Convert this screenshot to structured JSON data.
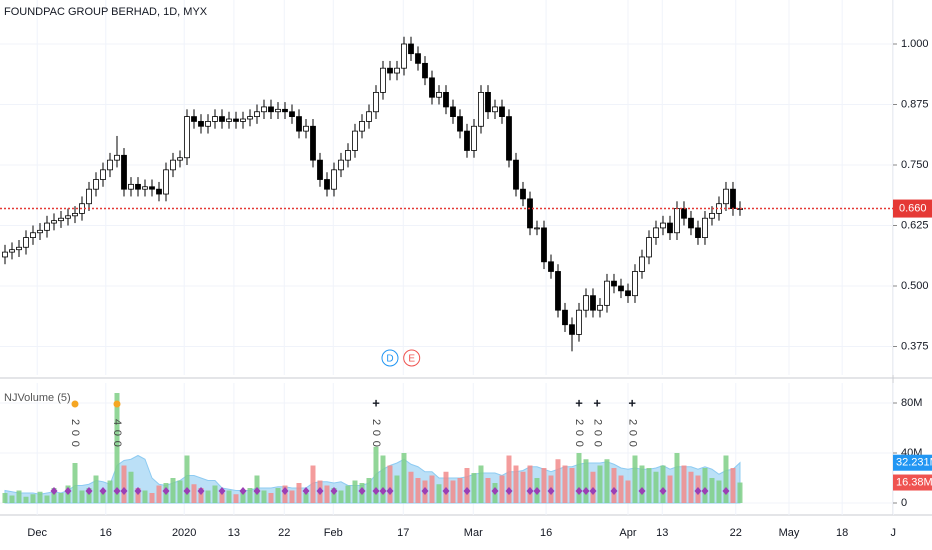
{
  "chart_data": {
    "type": "candlestick",
    "title": "FOUNDPAC GROUP BERHAD, 1D, MYX",
    "open": [
      0.56,
      0.57,
      0.575,
      0.58,
      0.6,
      0.61,
      0.615,
      0.63,
      0.635,
      0.64,
      0.645,
      0.65,
      0.67,
      0.7,
      0.72,
      0.74,
      0.76,
      0.77,
      0.7,
      0.71,
      0.7,
      0.705,
      0.7,
      0.69,
      0.74,
      0.76,
      0.765,
      0.85,
      0.84,
      0.83,
      0.84,
      0.85,
      0.84,
      0.845,
      0.84,
      0.845,
      0.85,
      0.86,
      0.87,
      0.86,
      0.865,
      0.86,
      0.85,
      0.82,
      0.83,
      0.76,
      0.72,
      0.7,
      0.74,
      0.76,
      0.78,
      0.82,
      0.84,
      0.86,
      0.9,
      0.95,
      0.94,
      0.95,
      1.0,
      0.98,
      0.96,
      0.93,
      0.89,
      0.9,
      0.87,
      0.85,
      0.82,
      0.78,
      0.83,
      0.9,
      0.86,
      0.87,
      0.85,
      0.76,
      0.7,
      0.68,
      0.62,
      0.62,
      0.55,
      0.53,
      0.45,
      0.42,
      0.4,
      0.45,
      0.48,
      0.45,
      0.46,
      0.51,
      0.5,
      0.49,
      0.48,
      0.53,
      0.56,
      0.6,
      0.62,
      0.63,
      0.61,
      0.66,
      0.64,
      0.62,
      0.6,
      0.64,
      0.65,
      0.67,
      0.7,
      0.66
    ],
    "high": [
      0.585,
      0.59,
      0.595,
      0.615,
      0.625,
      0.63,
      0.645,
      0.65,
      0.655,
      0.66,
      0.665,
      0.685,
      0.715,
      0.735,
      0.755,
      0.775,
      0.81,
      0.785,
      0.725,
      0.725,
      0.72,
      0.72,
      0.715,
      0.755,
      0.775,
      0.78,
      0.865,
      0.865,
      0.855,
      0.855,
      0.865,
      0.865,
      0.86,
      0.86,
      0.86,
      0.865,
      0.875,
      0.885,
      0.885,
      0.88,
      0.88,
      0.875,
      0.865,
      0.845,
      0.845,
      0.775,
      0.735,
      0.755,
      0.775,
      0.795,
      0.835,
      0.855,
      0.875,
      0.915,
      0.965,
      0.965,
      0.965,
      1.015,
      1.015,
      0.995,
      0.975,
      0.945,
      0.915,
      0.915,
      0.885,
      0.865,
      0.835,
      0.845,
      0.915,
      0.915,
      0.885,
      0.885,
      0.865,
      0.775,
      0.715,
      0.695,
      0.635,
      0.635,
      0.565,
      0.545,
      0.465,
      0.435,
      0.465,
      0.495,
      0.495,
      0.475,
      0.525,
      0.525,
      0.515,
      0.505,
      0.545,
      0.575,
      0.615,
      0.635,
      0.645,
      0.645,
      0.675,
      0.675,
      0.655,
      0.635,
      0.655,
      0.665,
      0.685,
      0.715,
      0.715,
      0.675
    ],
    "low": [
      0.545,
      0.555,
      0.56,
      0.565,
      0.585,
      0.595,
      0.6,
      0.615,
      0.62,
      0.625,
      0.63,
      0.635,
      0.655,
      0.685,
      0.705,
      0.725,
      0.745,
      0.685,
      0.685,
      0.685,
      0.685,
      0.685,
      0.675,
      0.675,
      0.725,
      0.745,
      0.75,
      0.825,
      0.815,
      0.815,
      0.825,
      0.825,
      0.825,
      0.825,
      0.825,
      0.83,
      0.835,
      0.845,
      0.845,
      0.845,
      0.845,
      0.835,
      0.805,
      0.805,
      0.745,
      0.705,
      0.685,
      0.685,
      0.725,
      0.745,
      0.765,
      0.805,
      0.825,
      0.845,
      0.885,
      0.925,
      0.925,
      0.935,
      0.965,
      0.945,
      0.915,
      0.875,
      0.875,
      0.855,
      0.835,
      0.805,
      0.765,
      0.765,
      0.815,
      0.845,
      0.845,
      0.835,
      0.745,
      0.685,
      0.665,
      0.605,
      0.605,
      0.535,
      0.515,
      0.435,
      0.405,
      0.365,
      0.385,
      0.435,
      0.435,
      0.435,
      0.445,
      0.485,
      0.475,
      0.465,
      0.465,
      0.515,
      0.545,
      0.585,
      0.605,
      0.595,
      0.595,
      0.625,
      0.605,
      0.585,
      0.585,
      0.625,
      0.635,
      0.655,
      0.645,
      0.645
    ],
    "close": [
      0.57,
      0.575,
      0.58,
      0.6,
      0.61,
      0.615,
      0.63,
      0.635,
      0.64,
      0.645,
      0.65,
      0.67,
      0.7,
      0.72,
      0.74,
      0.76,
      0.77,
      0.7,
      0.71,
      0.7,
      0.705,
      0.7,
      0.69,
      0.74,
      0.76,
      0.765,
      0.85,
      0.84,
      0.83,
      0.84,
      0.85,
      0.84,
      0.845,
      0.84,
      0.845,
      0.85,
      0.86,
      0.87,
      0.86,
      0.865,
      0.86,
      0.85,
      0.82,
      0.83,
      0.76,
      0.72,
      0.7,
      0.74,
      0.76,
      0.78,
      0.82,
      0.84,
      0.86,
      0.9,
      0.95,
      0.94,
      0.95,
      1.0,
      0.98,
      0.96,
      0.93,
      0.89,
      0.9,
      0.87,
      0.85,
      0.82,
      0.78,
      0.83,
      0.9,
      0.86,
      0.87,
      0.85,
      0.76,
      0.7,
      0.68,
      0.62,
      0.62,
      0.55,
      0.53,
      0.45,
      0.42,
      0.4,
      0.45,
      0.48,
      0.45,
      0.46,
      0.51,
      0.5,
      0.49,
      0.48,
      0.53,
      0.56,
      0.6,
      0.62,
      0.63,
      0.61,
      0.66,
      0.64,
      0.62,
      0.6,
      0.64,
      0.65,
      0.67,
      0.7,
      0.66,
      0.66
    ],
    "up_color": "#ffffff",
    "down_color": "#000000",
    "xlim": [
      -0.714,
      126.86
    ],
    "xticks": [
      {
        "value": 4.6,
        "label": "Dec"
      },
      {
        "value": 14.4,
        "label": "16"
      },
      {
        "value": 25.6,
        "label": "2020"
      },
      {
        "value": 32.7,
        "label": "13"
      },
      {
        "value": 39.9,
        "label": "22"
      },
      {
        "value": 46.9,
        "label": "Feb"
      },
      {
        "value": 56.9,
        "label": "17"
      },
      {
        "value": 66.9,
        "label": "Mar"
      },
      {
        "value": 77.3,
        "label": "16"
      },
      {
        "value": 89,
        "label": "Apr"
      },
      {
        "value": 93.9,
        "label": "13"
      },
      {
        "value": 104.4,
        "label": "22"
      },
      {
        "value": 112,
        "label": "May"
      },
      {
        "value": 119.6,
        "label": "18"
      },
      {
        "value": 126.9,
        "label": "J"
      }
    ],
    "ylim": [
      0.3161,
      1.0909
    ],
    "yticks": [
      {
        "value": 0.375,
        "label": "0.375"
      },
      {
        "value": 0.5,
        "label": "0.500"
      },
      {
        "value": 0.625,
        "label": "0.625"
      },
      {
        "value": 0.75,
        "label": "0.750"
      },
      {
        "value": 0.875,
        "label": "0.875"
      },
      {
        "value": 1,
        "label": "1.000"
      }
    ],
    "grid": true,
    "last_price": {
      "value": 0.66,
      "label": "0.660",
      "color": "#e53935"
    },
    "events": [
      {
        "x": 55,
        "label": "D",
        "color": "#2196f3"
      },
      {
        "x": 58.1,
        "label": "E",
        "color": "#ef5350"
      }
    ],
    "volume": {
      "title": "NJVolume (5)",
      "values": [
        8,
        6,
        10,
        5,
        7,
        9,
        6,
        12,
        8,
        14,
        32,
        10,
        12,
        22,
        10,
        18,
        88,
        30,
        25,
        12,
        10,
        8,
        14,
        16,
        20,
        18,
        38,
        15,
        12,
        10,
        14,
        8,
        10,
        7,
        9,
        12,
        22,
        10,
        8,
        12,
        14,
        10,
        16,
        8,
        30,
        18,
        14,
        12,
        10,
        14,
        18,
        16,
        20,
        45,
        38,
        30,
        22,
        40,
        25,
        20,
        18,
        22,
        15,
        25,
        18,
        20,
        28,
        24,
        30,
        20,
        16,
        22,
        38,
        30,
        25,
        30,
        20,
        28,
        22,
        35,
        30,
        28,
        40,
        35,
        25,
        30,
        35,
        28,
        22,
        18,
        38,
        30,
        28,
        25,
        30,
        22,
        40,
        30,
        25,
        22,
        28,
        20,
        18,
        38,
        28,
        16.38
      ],
      "ma": [
        10,
        9,
        8,
        8,
        8,
        7,
        8,
        9,
        8,
        10,
        14,
        14,
        15,
        18,
        17,
        15,
        30,
        34,
        35,
        38,
        35,
        20,
        15,
        14,
        16,
        18,
        22,
        22,
        20,
        18,
        18,
        12,
        11,
        10,
        10,
        10,
        12,
        12,
        12,
        13,
        13,
        12,
        12,
        12,
        16,
        17,
        17,
        16,
        17,
        14,
        14,
        14,
        16,
        23,
        27,
        30,
        32,
        35,
        31,
        29,
        25,
        25,
        20,
        20,
        20,
        20,
        21,
        23,
        24,
        24,
        24,
        22,
        25,
        25,
        26,
        29,
        29,
        27,
        25,
        27,
        29,
        29,
        31,
        32,
        32,
        32,
        33,
        31,
        28,
        27,
        28,
        27,
        27,
        28,
        30,
        27,
        29,
        29,
        29,
        27,
        29,
        27,
        23,
        26,
        27,
        32.231
      ],
      "up_color": "#7fcf86",
      "down_color": "#f28b8b",
      "ma_color": "#8ecbf2",
      "ylim": [
        -9.6,
        96
      ],
      "yticks": [
        0,
        {
          "value": 40,
          "label": "40M"
        },
        {
          "value": 80,
          "label": "80M"
        }
      ],
      "last_volume": {
        "value": 16.38,
        "label": "16.38M"
      },
      "last_ma": {
        "value": 32.231,
        "label": "32.231M"
      },
      "annotations": [
        {
          "x": 10,
          "text": "200"
        },
        {
          "x": 16,
          "text": "400"
        },
        {
          "x": 53,
          "symbol": "+",
          "text": "200"
        },
        {
          "x": 82,
          "symbol": "+",
          "text": "200"
        },
        {
          "x": 84.6,
          "symbol": "+",
          "text": "200"
        },
        {
          "x": 89.6,
          "symbol": "+",
          "text": "200"
        }
      ],
      "diamond_bars": [
        7,
        9,
        12,
        14,
        16,
        17,
        19,
        23,
        26,
        28,
        31,
        34,
        36,
        40,
        43,
        45,
        47,
        51,
        53,
        54,
        55,
        60,
        63,
        66,
        70,
        72,
        75,
        76,
        78,
        82,
        83,
        84,
        87,
        91,
        94,
        99,
        100,
        103
      ],
      "diamond_color": "#9b3fb5"
    }
  }
}
